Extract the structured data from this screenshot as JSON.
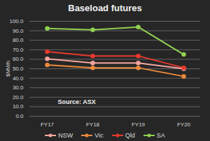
{
  "chart_data": {
    "type": "line",
    "title": "Baseload futures",
    "y_label": "$MWh",
    "annotation": "Source: ASX",
    "categories": [
      "FY17",
      "FY18",
      "FY19",
      "FY20"
    ],
    "series": [
      {
        "name": "NSW",
        "color": "#f4a6a0",
        "marker": "circle",
        "values": [
          60.5,
          56,
          56,
          50
        ]
      },
      {
        "name": "Vic",
        "color": "#ed8a3c",
        "marker": "circle",
        "values": [
          54,
          51,
          51,
          42
        ]
      },
      {
        "name": "Qld",
        "color": "#e8392f",
        "marker": "circle",
        "values": [
          68,
          63.5,
          63.5,
          51
        ]
      },
      {
        "name": "SA",
        "color": "#92d050",
        "marker": "circle",
        "values": [
          92.5,
          91,
          94,
          65
        ]
      }
    ],
    "ylim": [
      0,
      100
    ],
    "yticks": [
      {
        "value": 0,
        "label": "0.0"
      },
      {
        "value": 10,
        "label": "10.0"
      },
      {
        "value": 20,
        "label": "20.0"
      },
      {
        "value": 30,
        "label": "30.0"
      },
      {
        "value": 40,
        "label": "40.0"
      },
      {
        "value": 50,
        "label": "50.0"
      },
      {
        "value": 60,
        "label": "60.0"
      },
      {
        "value": 70,
        "label": "70.0"
      },
      {
        "value": 80,
        "label": "80.0"
      },
      {
        "value": 90,
        "label": "90.0"
      },
      {
        "value": 100,
        "label": "100.0"
      }
    ],
    "grid": true,
    "legend": "bottom"
  }
}
